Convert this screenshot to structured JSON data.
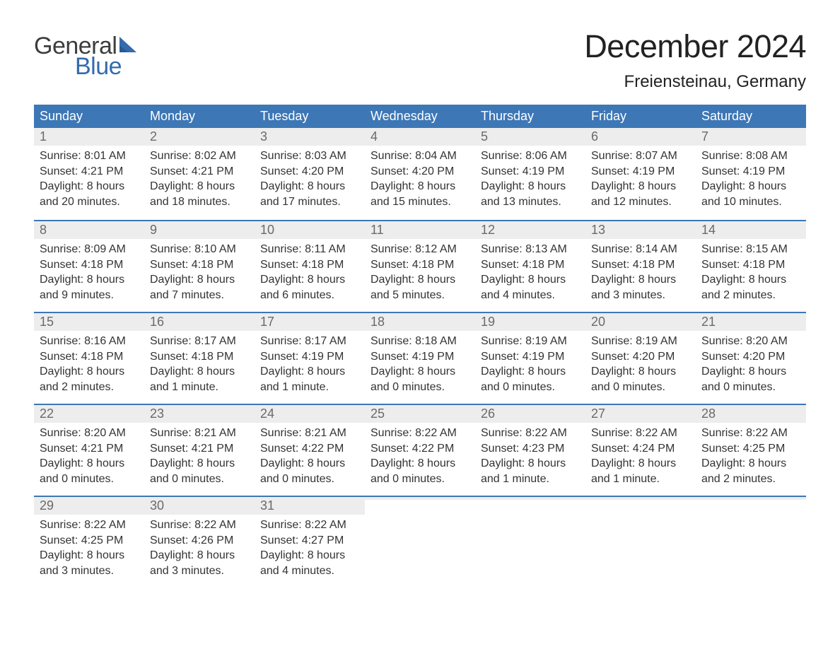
{
  "logo": {
    "general": "General",
    "blue": "Blue",
    "sail_color": "#336bad",
    "text_general_color": "#3d3d3d",
    "text_blue_color": "#336bad"
  },
  "title": {
    "month": "December 2024",
    "location": "Freiensteinau, Germany",
    "month_fontsize": 45,
    "location_fontsize": 24,
    "text_color": "#222222"
  },
  "header_row": {
    "background_color": "#3d77b6",
    "text_color": "#ffffff",
    "labels": [
      "Sunday",
      "Monday",
      "Tuesday",
      "Wednesday",
      "Thursday",
      "Friday",
      "Saturday"
    ]
  },
  "week_border_color": "#3d77b6",
  "daynum_bg": "#ededed",
  "daynum_color": "#6a6a6a",
  "body_text_color": "#333333",
  "background_color": "#ffffff",
  "weeks": [
    [
      {
        "n": "1",
        "sunrise": "Sunrise: 8:01 AM",
        "sunset": "Sunset: 4:21 PM",
        "dl1": "Daylight: 8 hours",
        "dl2": "and 20 minutes."
      },
      {
        "n": "2",
        "sunrise": "Sunrise: 8:02 AM",
        "sunset": "Sunset: 4:21 PM",
        "dl1": "Daylight: 8 hours",
        "dl2": "and 18 minutes."
      },
      {
        "n": "3",
        "sunrise": "Sunrise: 8:03 AM",
        "sunset": "Sunset: 4:20 PM",
        "dl1": "Daylight: 8 hours",
        "dl2": "and 17 minutes."
      },
      {
        "n": "4",
        "sunrise": "Sunrise: 8:04 AM",
        "sunset": "Sunset: 4:20 PM",
        "dl1": "Daylight: 8 hours",
        "dl2": "and 15 minutes."
      },
      {
        "n": "5",
        "sunrise": "Sunrise: 8:06 AM",
        "sunset": "Sunset: 4:19 PM",
        "dl1": "Daylight: 8 hours",
        "dl2": "and 13 minutes."
      },
      {
        "n": "6",
        "sunrise": "Sunrise: 8:07 AM",
        "sunset": "Sunset: 4:19 PM",
        "dl1": "Daylight: 8 hours",
        "dl2": "and 12 minutes."
      },
      {
        "n": "7",
        "sunrise": "Sunrise: 8:08 AM",
        "sunset": "Sunset: 4:19 PM",
        "dl1": "Daylight: 8 hours",
        "dl2": "and 10 minutes."
      }
    ],
    [
      {
        "n": "8",
        "sunrise": "Sunrise: 8:09 AM",
        "sunset": "Sunset: 4:18 PM",
        "dl1": "Daylight: 8 hours",
        "dl2": "and 9 minutes."
      },
      {
        "n": "9",
        "sunrise": "Sunrise: 8:10 AM",
        "sunset": "Sunset: 4:18 PM",
        "dl1": "Daylight: 8 hours",
        "dl2": "and 7 minutes."
      },
      {
        "n": "10",
        "sunrise": "Sunrise: 8:11 AM",
        "sunset": "Sunset: 4:18 PM",
        "dl1": "Daylight: 8 hours",
        "dl2": "and 6 minutes."
      },
      {
        "n": "11",
        "sunrise": "Sunrise: 8:12 AM",
        "sunset": "Sunset: 4:18 PM",
        "dl1": "Daylight: 8 hours",
        "dl2": "and 5 minutes."
      },
      {
        "n": "12",
        "sunrise": "Sunrise: 8:13 AM",
        "sunset": "Sunset: 4:18 PM",
        "dl1": "Daylight: 8 hours",
        "dl2": "and 4 minutes."
      },
      {
        "n": "13",
        "sunrise": "Sunrise: 8:14 AM",
        "sunset": "Sunset: 4:18 PM",
        "dl1": "Daylight: 8 hours",
        "dl2": "and 3 minutes."
      },
      {
        "n": "14",
        "sunrise": "Sunrise: 8:15 AM",
        "sunset": "Sunset: 4:18 PM",
        "dl1": "Daylight: 8 hours",
        "dl2": "and 2 minutes."
      }
    ],
    [
      {
        "n": "15",
        "sunrise": "Sunrise: 8:16 AM",
        "sunset": "Sunset: 4:18 PM",
        "dl1": "Daylight: 8 hours",
        "dl2": "and 2 minutes."
      },
      {
        "n": "16",
        "sunrise": "Sunrise: 8:17 AM",
        "sunset": "Sunset: 4:18 PM",
        "dl1": "Daylight: 8 hours",
        "dl2": "and 1 minute."
      },
      {
        "n": "17",
        "sunrise": "Sunrise: 8:17 AM",
        "sunset": "Sunset: 4:19 PM",
        "dl1": "Daylight: 8 hours",
        "dl2": "and 1 minute."
      },
      {
        "n": "18",
        "sunrise": "Sunrise: 8:18 AM",
        "sunset": "Sunset: 4:19 PM",
        "dl1": "Daylight: 8 hours",
        "dl2": "and 0 minutes."
      },
      {
        "n": "19",
        "sunrise": "Sunrise: 8:19 AM",
        "sunset": "Sunset: 4:19 PM",
        "dl1": "Daylight: 8 hours",
        "dl2": "and 0 minutes."
      },
      {
        "n": "20",
        "sunrise": "Sunrise: 8:19 AM",
        "sunset": "Sunset: 4:20 PM",
        "dl1": "Daylight: 8 hours",
        "dl2": "and 0 minutes."
      },
      {
        "n": "21",
        "sunrise": "Sunrise: 8:20 AM",
        "sunset": "Sunset: 4:20 PM",
        "dl1": "Daylight: 8 hours",
        "dl2": "and 0 minutes."
      }
    ],
    [
      {
        "n": "22",
        "sunrise": "Sunrise: 8:20 AM",
        "sunset": "Sunset: 4:21 PM",
        "dl1": "Daylight: 8 hours",
        "dl2": "and 0 minutes."
      },
      {
        "n": "23",
        "sunrise": "Sunrise: 8:21 AM",
        "sunset": "Sunset: 4:21 PM",
        "dl1": "Daylight: 8 hours",
        "dl2": "and 0 minutes."
      },
      {
        "n": "24",
        "sunrise": "Sunrise: 8:21 AM",
        "sunset": "Sunset: 4:22 PM",
        "dl1": "Daylight: 8 hours",
        "dl2": "and 0 minutes."
      },
      {
        "n": "25",
        "sunrise": "Sunrise: 8:22 AM",
        "sunset": "Sunset: 4:22 PM",
        "dl1": "Daylight: 8 hours",
        "dl2": "and 0 minutes."
      },
      {
        "n": "26",
        "sunrise": "Sunrise: 8:22 AM",
        "sunset": "Sunset: 4:23 PM",
        "dl1": "Daylight: 8 hours",
        "dl2": "and 1 minute."
      },
      {
        "n": "27",
        "sunrise": "Sunrise: 8:22 AM",
        "sunset": "Sunset: 4:24 PM",
        "dl1": "Daylight: 8 hours",
        "dl2": "and 1 minute."
      },
      {
        "n": "28",
        "sunrise": "Sunrise: 8:22 AM",
        "sunset": "Sunset: 4:25 PM",
        "dl1": "Daylight: 8 hours",
        "dl2": "and 2 minutes."
      }
    ],
    [
      {
        "n": "29",
        "sunrise": "Sunrise: 8:22 AM",
        "sunset": "Sunset: 4:25 PM",
        "dl1": "Daylight: 8 hours",
        "dl2": "and 3 minutes."
      },
      {
        "n": "30",
        "sunrise": "Sunrise: 8:22 AM",
        "sunset": "Sunset: 4:26 PM",
        "dl1": "Daylight: 8 hours",
        "dl2": "and 3 minutes."
      },
      {
        "n": "31",
        "sunrise": "Sunrise: 8:22 AM",
        "sunset": "Sunset: 4:27 PM",
        "dl1": "Daylight: 8 hours",
        "dl2": "and 4 minutes."
      },
      {
        "empty": true
      },
      {
        "empty": true
      },
      {
        "empty": true
      },
      {
        "empty": true
      }
    ]
  ]
}
